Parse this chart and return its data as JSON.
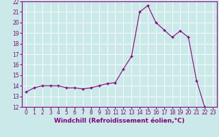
{
  "x": [
    0,
    1,
    2,
    3,
    4,
    5,
    6,
    7,
    8,
    9,
    10,
    11,
    12,
    13,
    14,
    15,
    16,
    17,
    18,
    19,
    20,
    21,
    22,
    23
  ],
  "y": [
    13.4,
    13.8,
    14.0,
    14.0,
    14.0,
    13.8,
    13.8,
    13.7,
    13.8,
    14.0,
    14.2,
    14.3,
    15.6,
    16.8,
    21.0,
    21.6,
    20.0,
    19.3,
    18.6,
    19.2,
    18.6,
    14.5,
    12.0,
    11.8
  ],
  "line_color": "#800080",
  "marker": "+",
  "marker_size": 3,
  "marker_lw": 1.0,
  "line_width": 0.8,
  "xlim": [
    -0.5,
    23.5
  ],
  "ylim": [
    12,
    22
  ],
  "yticks": [
    12,
    13,
    14,
    15,
    16,
    17,
    18,
    19,
    20,
    21,
    22
  ],
  "xticks": [
    0,
    1,
    2,
    3,
    4,
    5,
    6,
    7,
    8,
    9,
    10,
    11,
    12,
    13,
    14,
    15,
    16,
    17,
    18,
    19,
    20,
    21,
    22,
    23
  ],
  "xlabel": "Windchill (Refroidissement éolien,°C)",
  "background_color": "#cce9e9",
  "grid_color": "#ffffff",
  "line_border_color": "#800080",
  "tick_label_color": "#800080",
  "axis_label_color": "#800080",
  "font_size_ticks": 5.5,
  "font_size_label": 6.5
}
